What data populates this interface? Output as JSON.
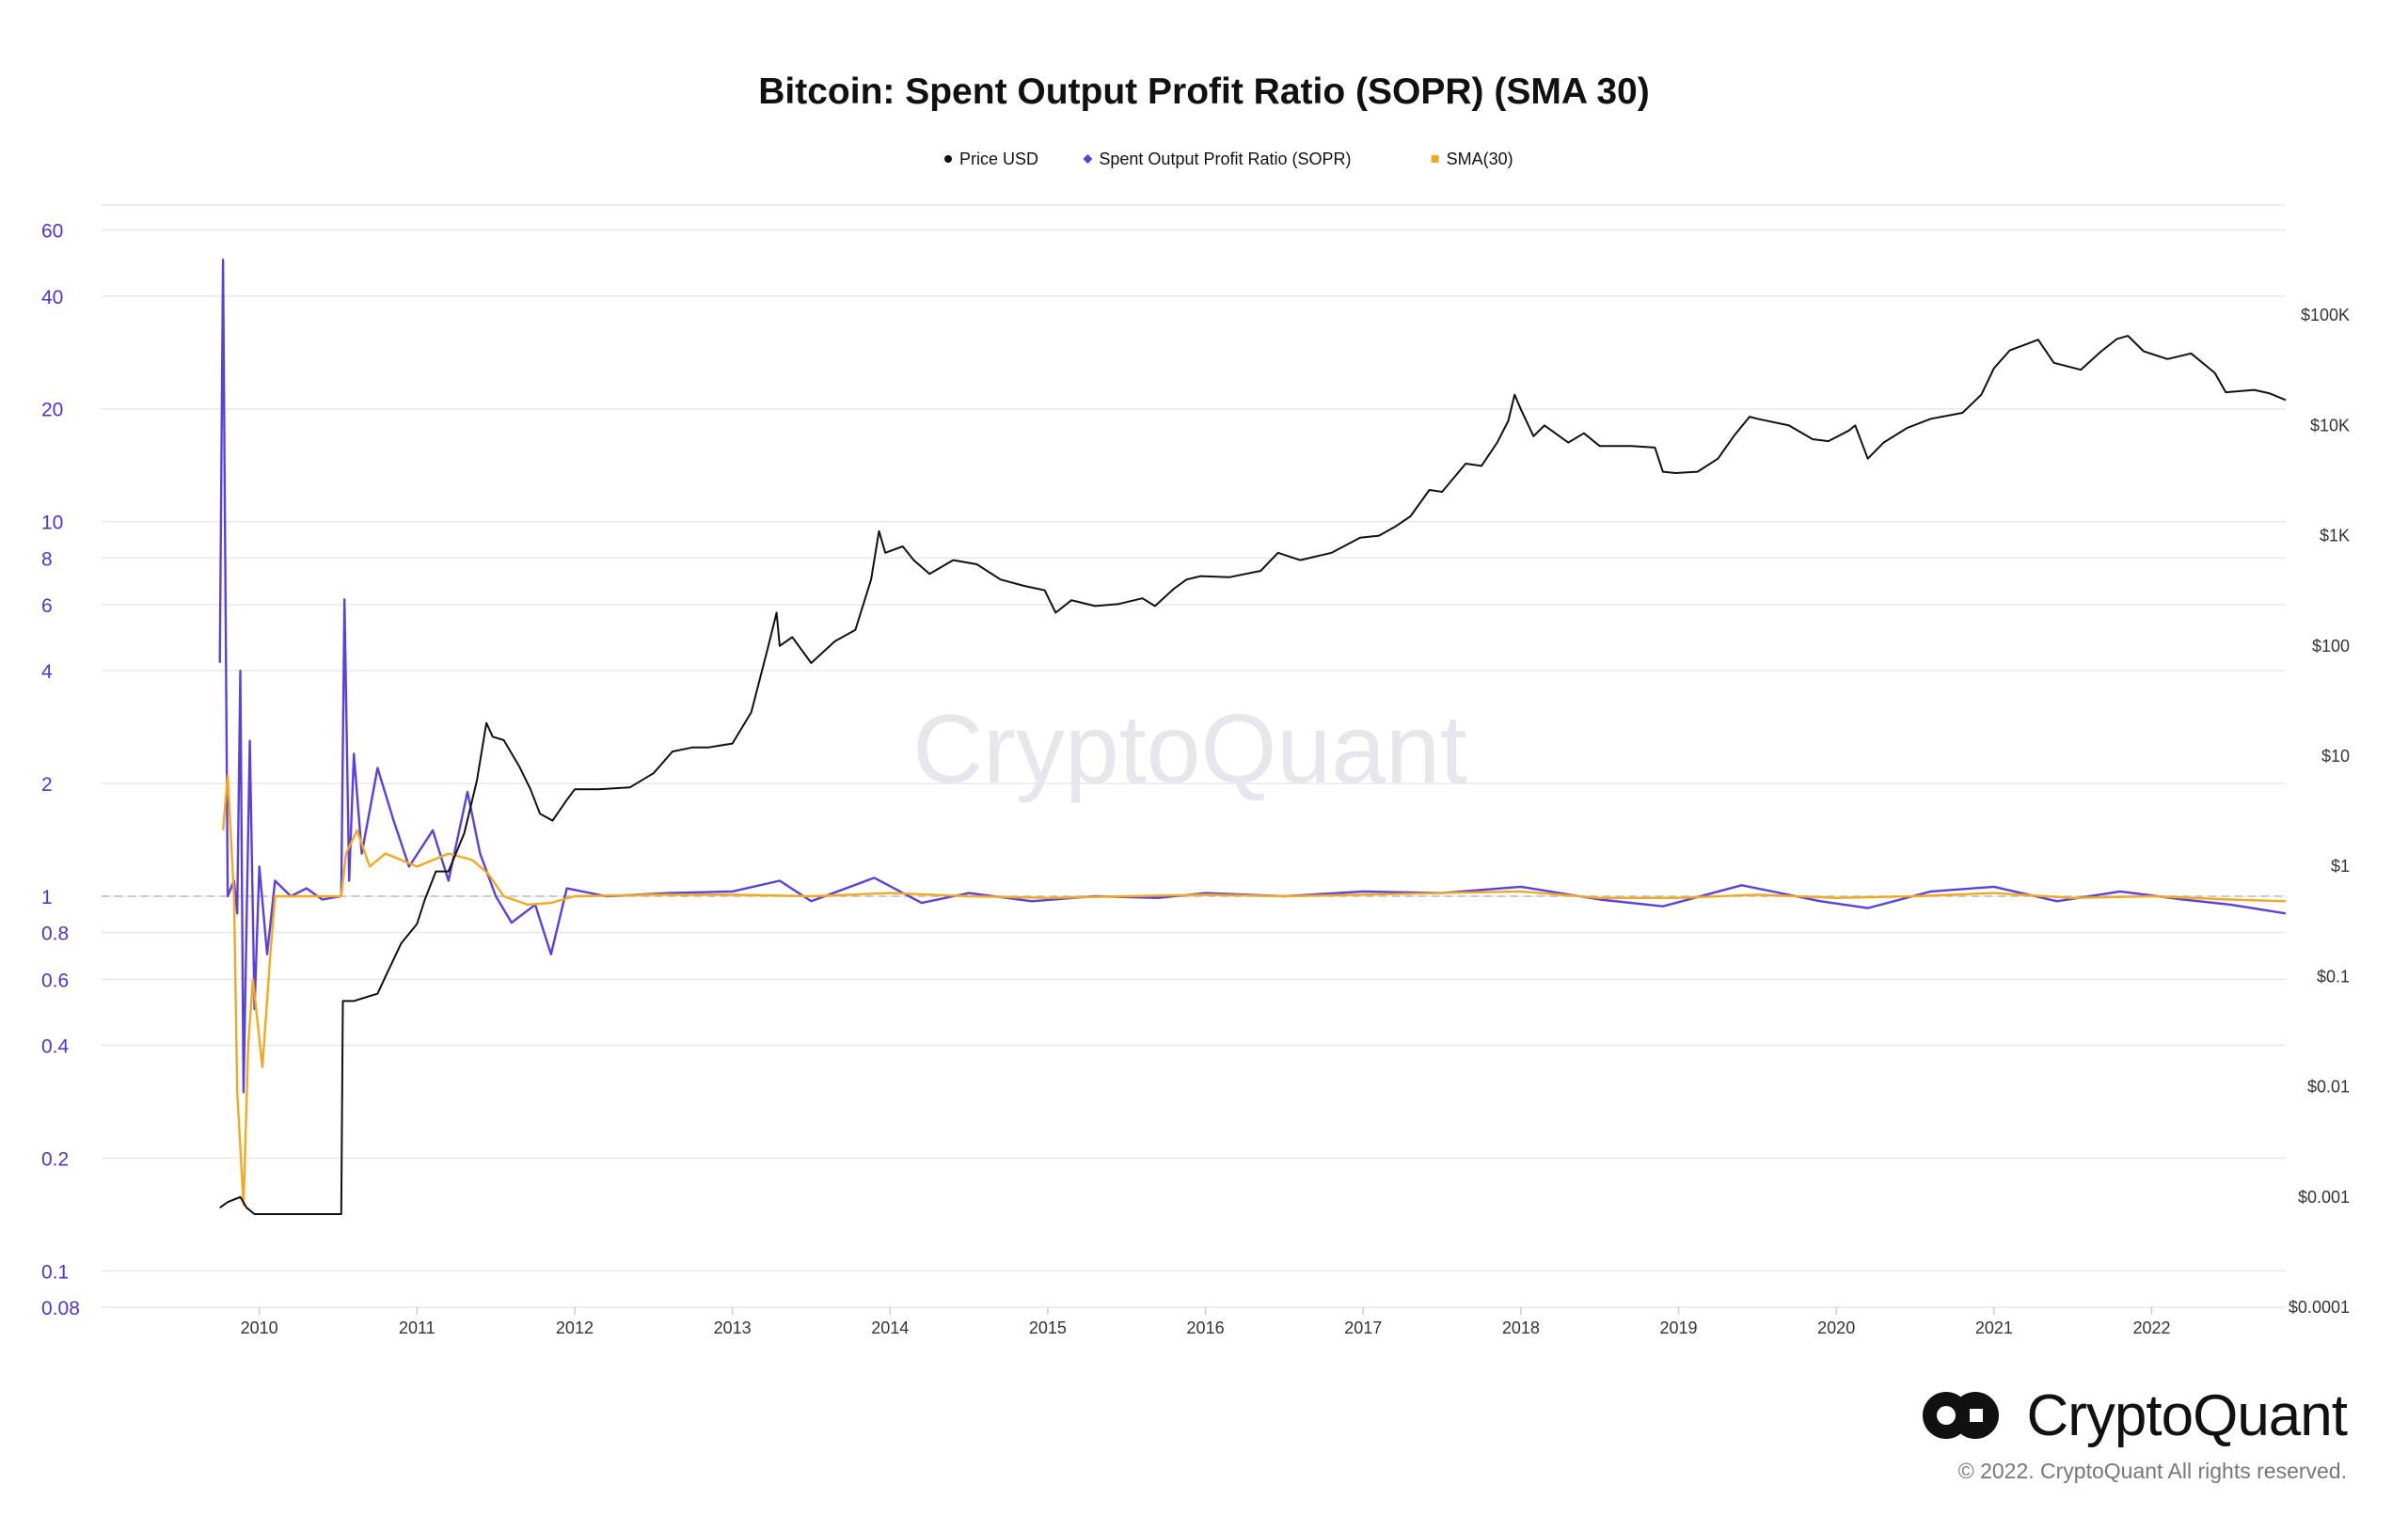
{
  "chart_data": {
    "type": "line",
    "title": "Bitcoin: Spent Output Profit Ratio (SOPR) (SMA 30)",
    "legend": [
      {
        "name": "Price USD",
        "color": "#111111",
        "marker": "circle"
      },
      {
        "name": "Spent Output Profit Ratio (SOPR)",
        "color": "#5b3fe0",
        "marker": "diamond"
      },
      {
        "name": "SMA(30)",
        "color": "#f2a91d",
        "marker": "square"
      }
    ],
    "legend_position": "top-center",
    "x_axis": {
      "type": "time",
      "range": [
        2009.0,
        2022.85
      ],
      "ticks": [
        "2010",
        "2011",
        "2012",
        "2013",
        "2014",
        "2015",
        "2016",
        "2017",
        "2018",
        "2019",
        "2020",
        "2021",
        "2022"
      ]
    },
    "y_left": {
      "scale": "log",
      "range": [
        0.08,
        70
      ],
      "ticks": [
        "0.08",
        "0.1",
        "0.2",
        "0.4",
        "0.6",
        "0.8",
        "1",
        "2",
        "4",
        "6",
        "8",
        "10",
        "20",
        "40",
        "60"
      ],
      "color": "#4a35d8"
    },
    "y_right": {
      "scale": "log",
      "range": [
        0.0001,
        1000000
      ],
      "ticks": [
        "$0.0001",
        "$0.001",
        "$0.01",
        "$0.1",
        "$1",
        "$10",
        "$100",
        "$1K",
        "$10K",
        "$100K"
      ]
    },
    "grid": true,
    "reference_line": {
      "value": 1,
      "style": "dashed"
    },
    "series": [
      {
        "name": "Price USD",
        "axis": "right",
        "points": [
          [
            2009.75,
            0.0008
          ],
          [
            2009.8,
            0.0009
          ],
          [
            2009.88,
            0.001
          ],
          [
            2009.92,
            0.0008
          ],
          [
            2009.97,
            0.0007
          ],
          [
            2010.05,
            0.0007
          ],
          [
            2010.3,
            0.0007
          ],
          [
            2010.52,
            0.0007
          ],
          [
            2010.53,
            0.06
          ],
          [
            2010.6,
            0.06
          ],
          [
            2010.75,
            0.07
          ],
          [
            2010.8,
            0.1
          ],
          [
            2010.9,
            0.2
          ],
          [
            2011.0,
            0.3
          ],
          [
            2011.05,
            0.5
          ],
          [
            2011.12,
            0.9
          ],
          [
            2011.2,
            0.9
          ],
          [
            2011.3,
            2
          ],
          [
            2011.38,
            6
          ],
          [
            2011.44,
            20
          ],
          [
            2011.48,
            15
          ],
          [
            2011.55,
            14
          ],
          [
            2011.65,
            8
          ],
          [
            2011.72,
            5
          ],
          [
            2011.78,
            3
          ],
          [
            2011.86,
            2.6
          ],
          [
            2011.95,
            4
          ],
          [
            2012.0,
            5
          ],
          [
            2012.15,
            5
          ],
          [
            2012.35,
            5.2
          ],
          [
            2012.5,
            7
          ],
          [
            2012.62,
            11
          ],
          [
            2012.75,
            12
          ],
          [
            2012.85,
            12
          ],
          [
            2013.0,
            13
          ],
          [
            2013.12,
            25
          ],
          [
            2013.22,
            90
          ],
          [
            2013.28,
            200
          ],
          [
            2013.3,
            100
          ],
          [
            2013.38,
            120
          ],
          [
            2013.5,
            70
          ],
          [
            2013.65,
            110
          ],
          [
            2013.78,
            140
          ],
          [
            2013.88,
            400
          ],
          [
            2013.93,
            1100
          ],
          [
            2013.97,
            700
          ],
          [
            2014.08,
            800
          ],
          [
            2014.15,
            600
          ],
          [
            2014.25,
            450
          ],
          [
            2014.4,
            600
          ],
          [
            2014.55,
            550
          ],
          [
            2014.7,
            400
          ],
          [
            2014.85,
            350
          ],
          [
            2014.98,
            320
          ],
          [
            2015.05,
            200
          ],
          [
            2015.15,
            260
          ],
          [
            2015.3,
            230
          ],
          [
            2015.45,
            240
          ],
          [
            2015.6,
            270
          ],
          [
            2015.68,
            230
          ],
          [
            2015.8,
            330
          ],
          [
            2015.88,
            400
          ],
          [
            2015.97,
            430
          ],
          [
            2016.15,
            420
          ],
          [
            2016.35,
            480
          ],
          [
            2016.46,
            700
          ],
          [
            2016.6,
            600
          ],
          [
            2016.8,
            700
          ],
          [
            2016.98,
            960
          ],
          [
            2017.1,
            1000
          ],
          [
            2017.2,
            1200
          ],
          [
            2017.3,
            1500
          ],
          [
            2017.42,
            2600
          ],
          [
            2017.5,
            2500
          ],
          [
            2017.65,
            4500
          ],
          [
            2017.75,
            4300
          ],
          [
            2017.85,
            7000
          ],
          [
            2017.92,
            11000
          ],
          [
            2017.96,
            19000
          ],
          [
            2018.0,
            14000
          ],
          [
            2018.08,
            8000
          ],
          [
            2018.15,
            10000
          ],
          [
            2018.3,
            7000
          ],
          [
            2018.4,
            8500
          ],
          [
            2018.5,
            6500
          ],
          [
            2018.7,
            6500
          ],
          [
            2018.85,
            6300
          ],
          [
            2018.9,
            3800
          ],
          [
            2018.98,
            3700
          ],
          [
            2019.12,
            3800
          ],
          [
            2019.25,
            5000
          ],
          [
            2019.35,
            8000
          ],
          [
            2019.45,
            12000
          ],
          [
            2019.5,
            11500
          ],
          [
            2019.7,
            10000
          ],
          [
            2019.85,
            7500
          ],
          [
            2019.95,
            7200
          ],
          [
            2020.08,
            9000
          ],
          [
            2020.12,
            10000
          ],
          [
            2020.2,
            5000
          ],
          [
            2020.3,
            7000
          ],
          [
            2020.45,
            9500
          ],
          [
            2020.6,
            11500
          ],
          [
            2020.8,
            13000
          ],
          [
            2020.92,
            19000
          ],
          [
            2021.0,
            33000
          ],
          [
            2021.1,
            48000
          ],
          [
            2021.28,
            60000
          ],
          [
            2021.38,
            37000
          ],
          [
            2021.55,
            32000
          ],
          [
            2021.68,
            47000
          ],
          [
            2021.78,
            61000
          ],
          [
            2021.85,
            65000
          ],
          [
            2021.95,
            47000
          ],
          [
            2022.1,
            40000
          ],
          [
            2022.25,
            45000
          ],
          [
            2022.4,
            30000
          ],
          [
            2022.47,
            20000
          ],
          [
            2022.65,
            21000
          ],
          [
            2022.75,
            19500
          ],
          [
            2022.85,
            17000
          ]
        ]
      },
      {
        "name": "Spent Output Profit Ratio (SOPR)",
        "axis": "left",
        "points": [
          [
            2009.75,
            4.2
          ],
          [
            2009.77,
            50
          ],
          [
            2009.8,
            1.0
          ],
          [
            2009.84,
            1.1
          ],
          [
            2009.86,
            0.9
          ],
          [
            2009.88,
            4.0
          ],
          [
            2009.9,
            0.3
          ],
          [
            2009.94,
            2.6
          ],
          [
            2009.97,
            0.5
          ],
          [
            2010.0,
            1.2
          ],
          [
            2010.05,
            0.7
          ],
          [
            2010.1,
            1.1
          ],
          [
            2010.2,
            1.0
          ],
          [
            2010.3,
            1.05
          ],
          [
            2010.4,
            0.98
          ],
          [
            2010.52,
            1.0
          ],
          [
            2010.54,
            6.2
          ],
          [
            2010.57,
            1.1
          ],
          [
            2010.6,
            2.4
          ],
          [
            2010.65,
            1.3
          ],
          [
            2010.75,
            2.2
          ],
          [
            2010.85,
            1.6
          ],
          [
            2010.95,
            1.2
          ],
          [
            2011.1,
            1.5
          ],
          [
            2011.2,
            1.1
          ],
          [
            2011.32,
            1.9
          ],
          [
            2011.4,
            1.3
          ],
          [
            2011.5,
            1.0
          ],
          [
            2011.6,
            0.85
          ],
          [
            2011.75,
            0.95
          ],
          [
            2011.85,
            0.7
          ],
          [
            2011.95,
            1.05
          ],
          [
            2012.2,
            1.0
          ],
          [
            2012.6,
            1.02
          ],
          [
            2013.0,
            1.03
          ],
          [
            2013.3,
            1.1
          ],
          [
            2013.5,
            0.97
          ],
          [
            2013.9,
            1.12
          ],
          [
            2014.2,
            0.96
          ],
          [
            2014.5,
            1.02
          ],
          [
            2014.9,
            0.97
          ],
          [
            2015.3,
            1.0
          ],
          [
            2015.7,
            0.99
          ],
          [
            2016.0,
            1.02
          ],
          [
            2016.5,
            1.0
          ],
          [
            2017.0,
            1.03
          ],
          [
            2017.5,
            1.02
          ],
          [
            2018.0,
            1.06
          ],
          [
            2018.5,
            0.98
          ],
          [
            2018.9,
            0.94
          ],
          [
            2019.4,
            1.07
          ],
          [
            2019.9,
            0.97
          ],
          [
            2020.2,
            0.93
          ],
          [
            2020.6,
            1.03
          ],
          [
            2021.0,
            1.06
          ],
          [
            2021.4,
            0.97
          ],
          [
            2021.8,
            1.03
          ],
          [
            2022.2,
            0.98
          ],
          [
            2022.5,
            0.95
          ],
          [
            2022.85,
            0.9
          ]
        ]
      },
      {
        "name": "SMA(30)",
        "axis": "left",
        "points": [
          [
            2009.77,
            1.5
          ],
          [
            2009.8,
            2.1
          ],
          [
            2009.84,
            1.0
          ],
          [
            2009.86,
            0.3
          ],
          [
            2009.9,
            0.15
          ],
          [
            2009.93,
            0.4
          ],
          [
            2009.96,
            0.6
          ],
          [
            2010.02,
            0.35
          ],
          [
            2010.07,
            0.7
          ],
          [
            2010.1,
            1.0
          ],
          [
            2010.3,
            1.0
          ],
          [
            2010.52,
            1.0
          ],
          [
            2010.55,
            1.3
          ],
          [
            2010.62,
            1.5
          ],
          [
            2010.7,
            1.2
          ],
          [
            2010.8,
            1.3
          ],
          [
            2010.9,
            1.25
          ],
          [
            2011.0,
            1.2
          ],
          [
            2011.2,
            1.3
          ],
          [
            2011.35,
            1.25
          ],
          [
            2011.45,
            1.15
          ],
          [
            2011.55,
            1.0
          ],
          [
            2011.7,
            0.95
          ],
          [
            2011.85,
            0.96
          ],
          [
            2012.0,
            1.0
          ],
          [
            2012.5,
            1.01
          ],
          [
            2013.0,
            1.01
          ],
          [
            2013.5,
            1.0
          ],
          [
            2014.0,
            1.02
          ],
          [
            2014.5,
            1.0
          ],
          [
            2015.0,
            0.99
          ],
          [
            2015.5,
            1.0
          ],
          [
            2016.0,
            1.01
          ],
          [
            2016.5,
            1.0
          ],
          [
            2017.0,
            1.01
          ],
          [
            2017.5,
            1.02
          ],
          [
            2018.0,
            1.03
          ],
          [
            2018.5,
            0.99
          ],
          [
            2019.0,
            0.99
          ],
          [
            2019.5,
            1.01
          ],
          [
            2020.0,
            0.99
          ],
          [
            2020.5,
            1.0
          ],
          [
            2021.0,
            1.02
          ],
          [
            2021.5,
            0.99
          ],
          [
            2022.0,
            1.0
          ],
          [
            2022.5,
            0.98
          ],
          [
            2022.85,
            0.97
          ]
        ]
      }
    ]
  },
  "watermark": "CryptoQuant",
  "brand": "CryptoQuant",
  "copyright": "© 2022. CryptoQuant All rights reserved."
}
